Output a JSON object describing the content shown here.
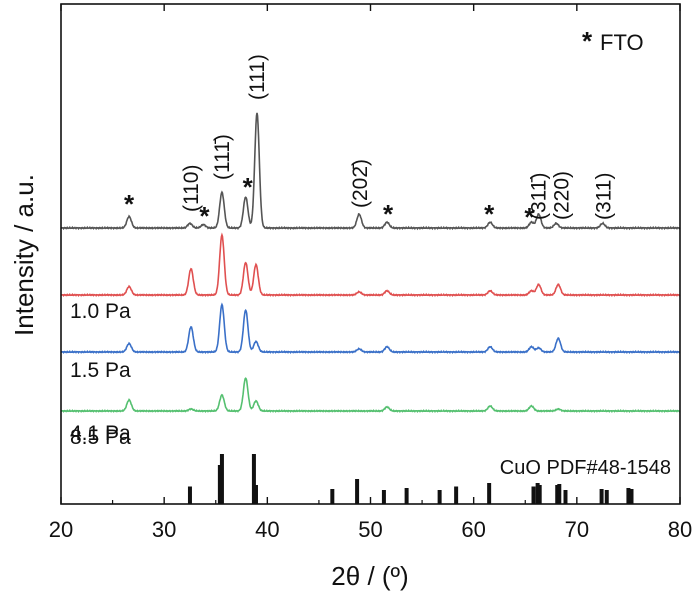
{
  "chart_data": {
    "type": "line",
    "xlabel": "2θ / (º)",
    "ylabel": "Intensity / a.u.",
    "xlim": [
      20,
      80
    ],
    "xticks": [
      20,
      30,
      40,
      50,
      60,
      70,
      80
    ],
    "x_tick_labels": [
      "20",
      "30",
      "40",
      "50",
      "60",
      "70",
      "80"
    ],
    "grid": false,
    "legend": {
      "marker": "*",
      "text": "FTO",
      "placement": "top-right"
    },
    "series": [
      {
        "name": "",
        "color": "#555555",
        "baseline": 0,
        "peaks": [
          [
            26.6,
            10
          ],
          [
            32.5,
            4
          ],
          [
            33.8,
            3
          ],
          [
            35.6,
            31
          ],
          [
            37.9,
            27
          ],
          [
            39.0,
            100
          ],
          [
            48.9,
            12
          ],
          [
            51.6,
            5
          ],
          [
            61.6,
            5
          ],
          [
            65.6,
            5
          ],
          [
            66.3,
            12
          ],
          [
            68.0,
            4
          ],
          [
            72.5,
            4
          ]
        ]
      },
      {
        "name": "1.0 Pa",
        "color": "#e05050",
        "baseline": 0,
        "peaks": [
          [
            26.6,
            8
          ],
          [
            32.6,
            25
          ],
          [
            35.6,
            57
          ],
          [
            37.9,
            31
          ],
          [
            38.9,
            29
          ],
          [
            48.9,
            3
          ],
          [
            51.6,
            4
          ],
          [
            61.6,
            4
          ],
          [
            65.6,
            4
          ],
          [
            66.3,
            10
          ],
          [
            68.2,
            10
          ]
        ]
      },
      {
        "name": "1.5 Pa",
        "color": "#3a70c8",
        "baseline": 0,
        "peaks": [
          [
            26.6,
            8
          ],
          [
            32.6,
            24
          ],
          [
            35.6,
            45
          ],
          [
            37.9,
            40
          ],
          [
            38.9,
            10
          ],
          [
            48.9,
            3
          ],
          [
            51.6,
            5
          ],
          [
            61.6,
            5
          ],
          [
            65.6,
            5
          ],
          [
            66.3,
            4
          ],
          [
            68.2,
            13
          ]
        ]
      },
      {
        "name": "4.1 Pa",
        "color": "#55c070",
        "baseline": 0,
        "peaks": [
          [
            26.6,
            11
          ],
          [
            32.6,
            2
          ],
          [
            35.6,
            16
          ],
          [
            37.9,
            33
          ],
          [
            38.9,
            10
          ],
          [
            51.6,
            4
          ],
          [
            61.6,
            5
          ],
          [
            65.6,
            5
          ],
          [
            68.2,
            2
          ]
        ]
      }
    ],
    "reference": {
      "name": "CuO PDF#48-1548",
      "series_label": "8.5 Pa",
      "lines": [
        [
          32.5,
          35
        ],
        [
          35.4,
          78
        ],
        [
          35.6,
          100
        ],
        [
          38.7,
          100
        ],
        [
          38.9,
          38
        ],
        [
          46.3,
          30
        ],
        [
          48.7,
          50
        ],
        [
          51.3,
          28
        ],
        [
          53.5,
          32
        ],
        [
          56.7,
          28
        ],
        [
          58.3,
          35
        ],
        [
          61.5,
          42
        ],
        [
          65.8,
          35
        ],
        [
          66.2,
          42
        ],
        [
          66.4,
          38
        ],
        [
          68.1,
          38
        ],
        [
          68.3,
          40
        ],
        [
          68.9,
          28
        ],
        [
          72.4,
          30
        ],
        [
          72.9,
          28
        ],
        [
          75.0,
          32
        ],
        [
          75.3,
          30
        ]
      ]
    },
    "peak_labels": [
      {
        "text": "(110)",
        "x": 32.6,
        "rotated": true
      },
      {
        "text": "(11̅ ̅1)",
        "x": 35.6,
        "rotated": true,
        "raw": "(111̄)"
      },
      {
        "text": "(111)",
        "x": 39.0,
        "rotated": true
      },
      {
        "text": "(202̄)",
        "x": 49.0,
        "rotated": true
      },
      {
        "text": "(311̄)",
        "x": 66.3,
        "rotated": true
      },
      {
        "text": "(220)",
        "x": 68.5,
        "rotated": true
      },
      {
        "text": "(311)",
        "x": 72.6,
        "rotated": true
      }
    ],
    "star_positions": [
      26.6,
      33.9,
      38.1,
      51.7,
      61.5,
      65.4
    ]
  }
}
